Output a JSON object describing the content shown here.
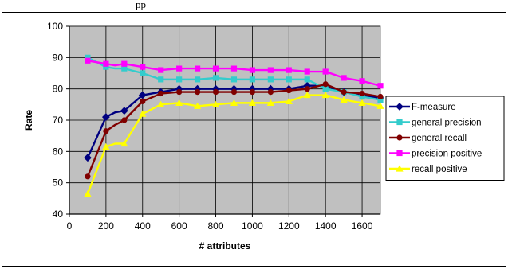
{
  "page": {
    "top_caption": "pp"
  },
  "chart_data": {
    "type": "line",
    "title": "",
    "xlabel": "# attributes",
    "ylabel": "Rate",
    "xlim": [
      0,
      1700
    ],
    "ylim": [
      40,
      100
    ],
    "x_ticks": [
      0,
      200,
      400,
      600,
      800,
      1000,
      1200,
      1400,
      1600
    ],
    "y_ticks": [
      40,
      50,
      60,
      70,
      80,
      90,
      100
    ],
    "grid": true,
    "legend_position": "right",
    "plot_background": "#c0c0c0",
    "x": [
      100,
      200,
      250,
      300,
      400,
      500,
      600,
      700,
      800,
      900,
      1000,
      1100,
      1200,
      1300,
      1400,
      1500,
      1600,
      1700
    ],
    "series": [
      {
        "name": "F-measure",
        "color": "#000080",
        "marker": "diamond",
        "values": [
          58,
          71,
          72.5,
          73,
          78,
          79,
          80,
          80,
          80,
          80,
          80,
          80,
          80,
          81,
          81,
          79,
          78,
          77
        ]
      },
      {
        "name": "general precision",
        "color": "#33cccc",
        "marker": "square",
        "values": [
          90,
          87,
          86.5,
          86.5,
          85,
          83,
          83,
          83,
          83.5,
          83,
          83,
          83,
          83,
          83,
          80,
          79,
          77.5,
          76.5
        ]
      },
      {
        "name": "general recall",
        "color": "#800000",
        "marker": "circle",
        "values": [
          52,
          66.5,
          68.5,
          70,
          76,
          78.5,
          79,
          79,
          79,
          79,
          79,
          79,
          79.5,
          80,
          81.5,
          79,
          78.5,
          77.5
        ]
      },
      {
        "name": "precision positive",
        "color": "#ff00ff",
        "marker": "square",
        "values": [
          89,
          88,
          87.5,
          88,
          87,
          86,
          86.5,
          86.5,
          86.5,
          86.5,
          86,
          86,
          86,
          85.5,
          85.5,
          83.5,
          82.5,
          81
        ]
      },
      {
        "name": "recall positive",
        "color": "#ffff00",
        "marker": "triangle",
        "values": [
          46.5,
          61.5,
          62.5,
          62.5,
          72,
          75,
          75.5,
          74.5,
          75,
          75.5,
          75.5,
          75.5,
          76,
          78,
          78,
          76.5,
          75.5,
          74.5
        ]
      }
    ]
  }
}
